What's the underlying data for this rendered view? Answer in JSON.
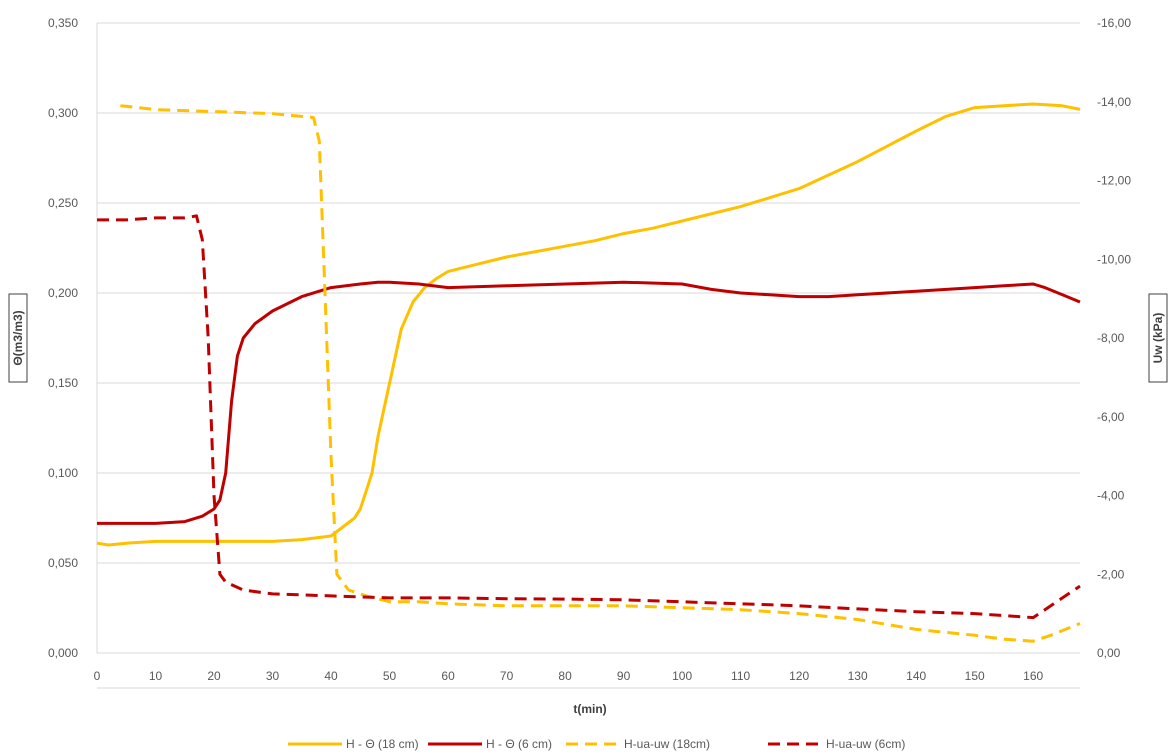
{
  "chart_data": {
    "type": "line",
    "xlabel": "t(min)",
    "ylabel_left": "Θ(m3/m3)",
    "ylabel_right": "Uw (kPa)",
    "xlim": [
      0,
      168
    ],
    "ylim_left": [
      0,
      0.35
    ],
    "ylim_right": [
      0,
      -16
    ],
    "x_ticks": [
      "0",
      "10",
      "20",
      "30",
      "40",
      "50",
      "60",
      "70",
      "80",
      "90",
      "100",
      "110",
      "120",
      "130",
      "140",
      "150",
      "160"
    ],
    "y_left_ticks": [
      "0,000",
      "0,050",
      "0,100",
      "0,150",
      "0,200",
      "0,250",
      "0,300",
      "0,350"
    ],
    "y_right_ticks": [
      "0,00",
      "-2,00",
      "-4,00",
      "-6,00",
      "-8,00",
      "-10,00",
      "-12,00",
      "-14,00",
      "-16,00"
    ],
    "grid": true,
    "legend_position": "bottom",
    "series": [
      {
        "name": "H - Θ (18 cm)",
        "axis": "left",
        "color": "#FFC000",
        "style": "solid",
        "points": [
          [
            0,
            0.061
          ],
          [
            2,
            0.06
          ],
          [
            5,
            0.061
          ],
          [
            10,
            0.062
          ],
          [
            20,
            0.062
          ],
          [
            25,
            0.062
          ],
          [
            30,
            0.062
          ],
          [
            35,
            0.063
          ],
          [
            40,
            0.065
          ],
          [
            42,
            0.07
          ],
          [
            44,
            0.075
          ],
          [
            45,
            0.08
          ],
          [
            46,
            0.09
          ],
          [
            47,
            0.1
          ],
          [
            48,
            0.12
          ],
          [
            49,
            0.135
          ],
          [
            50,
            0.15
          ],
          [
            52,
            0.18
          ],
          [
            54,
            0.195
          ],
          [
            56,
            0.203
          ],
          [
            58,
            0.208
          ],
          [
            60,
            0.212
          ],
          [
            65,
            0.216
          ],
          [
            70,
            0.22
          ],
          [
            75,
            0.223
          ],
          [
            80,
            0.226
          ],
          [
            85,
            0.229
          ],
          [
            90,
            0.233
          ],
          [
            95,
            0.236
          ],
          [
            100,
            0.24
          ],
          [
            110,
            0.248
          ],
          [
            120,
            0.258
          ],
          [
            130,
            0.273
          ],
          [
            140,
            0.29
          ],
          [
            145,
            0.298
          ],
          [
            150,
            0.303
          ],
          [
            155,
            0.304
          ],
          [
            160,
            0.305
          ],
          [
            165,
            0.304
          ],
          [
            168,
            0.302
          ]
        ]
      },
      {
        "name": "H - Θ (6 cm)",
        "axis": "left",
        "color": "#C00000",
        "style": "solid",
        "points": [
          [
            0,
            0.072
          ],
          [
            5,
            0.072
          ],
          [
            10,
            0.072
          ],
          [
            15,
            0.073
          ],
          [
            18,
            0.076
          ],
          [
            20,
            0.08
          ],
          [
            21,
            0.085
          ],
          [
            22,
            0.1
          ],
          [
            23,
            0.14
          ],
          [
            24,
            0.165
          ],
          [
            25,
            0.175
          ],
          [
            27,
            0.183
          ],
          [
            30,
            0.19
          ],
          [
            35,
            0.198
          ],
          [
            40,
            0.203
          ],
          [
            45,
            0.205
          ],
          [
            48,
            0.206
          ],
          [
            50,
            0.206
          ],
          [
            55,
            0.205
          ],
          [
            60,
            0.203
          ],
          [
            70,
            0.204
          ],
          [
            80,
            0.205
          ],
          [
            90,
            0.206
          ],
          [
            100,
            0.205
          ],
          [
            105,
            0.202
          ],
          [
            110,
            0.2
          ],
          [
            115,
            0.199
          ],
          [
            120,
            0.198
          ],
          [
            125,
            0.198
          ],
          [
            130,
            0.199
          ],
          [
            140,
            0.201
          ],
          [
            150,
            0.203
          ],
          [
            155,
            0.204
          ],
          [
            160,
            0.205
          ],
          [
            162,
            0.203
          ],
          [
            165,
            0.199
          ],
          [
            168,
            0.195
          ]
        ]
      },
      {
        "name": "H-ua-uw (18cm)",
        "axis": "right",
        "color": "#FFC000",
        "style": "dashed",
        "points": [
          [
            4,
            -13.9
          ],
          [
            10,
            -13.8
          ],
          [
            20,
            -13.75
          ],
          [
            30,
            -13.7
          ],
          [
            37,
            -13.6
          ],
          [
            38,
            -13.0
          ],
          [
            39,
            -9.0
          ],
          [
            40,
            -5.0
          ],
          [
            41,
            -2.0
          ],
          [
            43,
            -1.6
          ],
          [
            46,
            -1.45
          ],
          [
            50,
            -1.3
          ],
          [
            55,
            -1.3
          ],
          [
            60,
            -1.25
          ],
          [
            70,
            -1.2
          ],
          [
            80,
            -1.2
          ],
          [
            90,
            -1.2
          ],
          [
            100,
            -1.15
          ],
          [
            110,
            -1.1
          ],
          [
            120,
            -1.0
          ],
          [
            130,
            -0.85
          ],
          [
            140,
            -0.6
          ],
          [
            150,
            -0.45
          ],
          [
            155,
            -0.35
          ],
          [
            160,
            -0.3
          ],
          [
            163,
            -0.45
          ],
          [
            168,
            -0.75
          ]
        ]
      },
      {
        "name": "H-ua-uw (6cm)",
        "axis": "right",
        "color": "#C00000",
        "style": "dashed",
        "points": [
          [
            0,
            -11.0
          ],
          [
            5,
            -11.0
          ],
          [
            10,
            -11.05
          ],
          [
            15,
            -11.05
          ],
          [
            17,
            -11.1
          ],
          [
            18,
            -10.5
          ],
          [
            19,
            -8.0
          ],
          [
            20,
            -4.0
          ],
          [
            21,
            -2.0
          ],
          [
            22,
            -1.8
          ],
          [
            25,
            -1.6
          ],
          [
            30,
            -1.5
          ],
          [
            40,
            -1.45
          ],
          [
            50,
            -1.4
          ],
          [
            60,
            -1.4
          ],
          [
            70,
            -1.38
          ],
          [
            80,
            -1.37
          ],
          [
            90,
            -1.35
          ],
          [
            100,
            -1.3
          ],
          [
            110,
            -1.25
          ],
          [
            120,
            -1.2
          ],
          [
            130,
            -1.12
          ],
          [
            140,
            -1.05
          ],
          [
            150,
            -1.0
          ],
          [
            155,
            -0.95
          ],
          [
            160,
            -0.9
          ],
          [
            162,
            -1.1
          ],
          [
            165,
            -1.4
          ],
          [
            168,
            -1.7
          ]
        ]
      }
    ]
  }
}
